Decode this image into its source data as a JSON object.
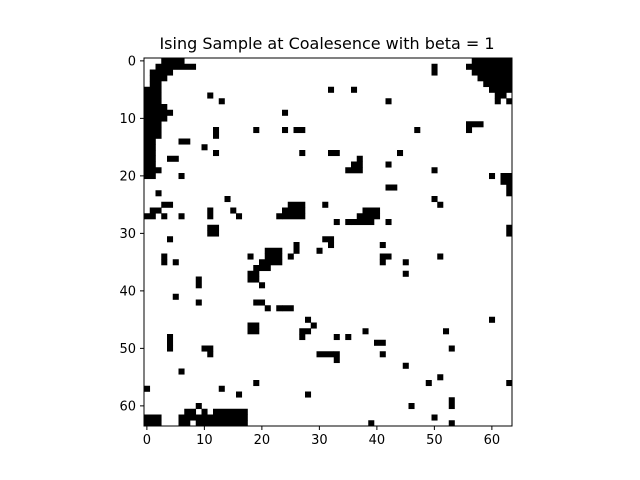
{
  "chart_data": {
    "type": "heatmap",
    "title": "Ising Sample at Coalesence with beta = 1",
    "xlabel": "",
    "ylabel": "",
    "grid_size": 64,
    "xlim": [
      -0.5,
      63.5
    ],
    "ylim": [
      63.5,
      -0.5
    ],
    "colormap": {
      "-1": "#000000",
      "1": "#ffffff"
    },
    "x_ticks": [
      0,
      10,
      20,
      30,
      40,
      50,
      60
    ],
    "y_ticks": [
      0,
      10,
      20,
      30,
      40,
      50,
      60
    ],
    "black_rects": [
      [
        3,
        0,
        4,
        1
      ],
      [
        2,
        1,
        7,
        1
      ],
      [
        1,
        2,
        4,
        1
      ],
      [
        1,
        3,
        3,
        1
      ],
      [
        1,
        4,
        2,
        1
      ],
      [
        0,
        5,
        3,
        1
      ],
      [
        0,
        6,
        3,
        1
      ],
      [
        0,
        7,
        3,
        1
      ],
      [
        0,
        8,
        4,
        1
      ],
      [
        0,
        9,
        5,
        1
      ],
      [
        0,
        10,
        4,
        1
      ],
      [
        0,
        11,
        3,
        1
      ],
      [
        0,
        12,
        3,
        1
      ],
      [
        0,
        13,
        3,
        1
      ],
      [
        0,
        14,
        2,
        1
      ],
      [
        0,
        15,
        2,
        1
      ],
      [
        0,
        16,
        2,
        1
      ],
      [
        0,
        17,
        2,
        1
      ],
      [
        0,
        18,
        2,
        1
      ],
      [
        0,
        19,
        3,
        1
      ],
      [
        0,
        20,
        2,
        1
      ],
      [
        57,
        0,
        7,
        1
      ],
      [
        56,
        1,
        8,
        1
      ],
      [
        57,
        2,
        7,
        1
      ],
      [
        58,
        3,
        6,
        1
      ],
      [
        59,
        4,
        5,
        1
      ],
      [
        60,
        5,
        3,
        1
      ],
      [
        61,
        6,
        2,
        1
      ],
      [
        61,
        7,
        1,
        1
      ],
      [
        50,
        1,
        1,
        2
      ],
      [
        63,
        5,
        1,
        1
      ],
      [
        63,
        7,
        1,
        1
      ],
      [
        11,
        6,
        1,
        1
      ],
      [
        13,
        7,
        1,
        1
      ],
      [
        19,
        12,
        1,
        1
      ],
      [
        24,
        12,
        1,
        1
      ],
      [
        26,
        12,
        2,
        1
      ],
      [
        12,
        12,
        1,
        1
      ],
      [
        12,
        13,
        1,
        1
      ],
      [
        24,
        9,
        1,
        1
      ],
      [
        32,
        5,
        1,
        1
      ],
      [
        36,
        5,
        1,
        1
      ],
      [
        42,
        7,
        1,
        1
      ],
      [
        47,
        12,
        1,
        1
      ],
      [
        56,
        11,
        3,
        1
      ],
      [
        56,
        12,
        1,
        1
      ],
      [
        6,
        14,
        2,
        1
      ],
      [
        10,
        15,
        1,
        1
      ],
      [
        12,
        16,
        1,
        1
      ],
      [
        4,
        17,
        2,
        1
      ],
      [
        6,
        20,
        1,
        1
      ],
      [
        27,
        16,
        1,
        1
      ],
      [
        32,
        16,
        2,
        1
      ],
      [
        44,
        16,
        1,
        1
      ],
      [
        37,
        17,
        1,
        1
      ],
      [
        36,
        18,
        2,
        1
      ],
      [
        35,
        19,
        3,
        1
      ],
      [
        42,
        18,
        1,
        1
      ],
      [
        50,
        19,
        1,
        1
      ],
      [
        60,
        20,
        1,
        1
      ],
      [
        62,
        20,
        2,
        1
      ],
      [
        62,
        21,
        2,
        1
      ],
      [
        63,
        22,
        1,
        2
      ],
      [
        42,
        22,
        2,
        1
      ],
      [
        50,
        24,
        1,
        1
      ],
      [
        51,
        25,
        1,
        1
      ],
      [
        2,
        23,
        1,
        1
      ],
      [
        14,
        24,
        1,
        1
      ],
      [
        3,
        25,
        2,
        1
      ],
      [
        1,
        26,
        2,
        1
      ],
      [
        0,
        27,
        2,
        1
      ],
      [
        3,
        27,
        1,
        1
      ],
      [
        6,
        27,
        1,
        1
      ],
      [
        11,
        26,
        1,
        2
      ],
      [
        15,
        26,
        1,
        1
      ],
      [
        16,
        27,
        1,
        1
      ],
      [
        25,
        25,
        3,
        1
      ],
      [
        24,
        26,
        4,
        1
      ],
      [
        24,
        27,
        4,
        1
      ],
      [
        23,
        27,
        1,
        1
      ],
      [
        31,
        25,
        1,
        1
      ],
      [
        38,
        26,
        3,
        1
      ],
      [
        37,
        27,
        4,
        1
      ],
      [
        36,
        28,
        4,
        1
      ],
      [
        35,
        28,
        1,
        1
      ],
      [
        42,
        28,
        1,
        1
      ],
      [
        33,
        28,
        1,
        1
      ],
      [
        11,
        29,
        2,
        1
      ],
      [
        11,
        30,
        2,
        1
      ],
      [
        63,
        29,
        1,
        2
      ],
      [
        4,
        31,
        1,
        1
      ],
      [
        31,
        31,
        2,
        1
      ],
      [
        32,
        32,
        1,
        1
      ],
      [
        26,
        32,
        1,
        1
      ],
      [
        30,
        33,
        1,
        1
      ],
      [
        25,
        34,
        1,
        1
      ],
      [
        26,
        33,
        1,
        1
      ],
      [
        21,
        33,
        3,
        1
      ],
      [
        21,
        34,
        3,
        1
      ],
      [
        18,
        34,
        1,
        1
      ],
      [
        20,
        35,
        4,
        1
      ],
      [
        19,
        36,
        3,
        1
      ],
      [
        18,
        37,
        2,
        1
      ],
      [
        18,
        38,
        2,
        1
      ],
      [
        5,
        35,
        1,
        1
      ],
      [
        3,
        34,
        1,
        1
      ],
      [
        3,
        35,
        1,
        1
      ],
      [
        9,
        38,
        1,
        2
      ],
      [
        5,
        41,
        1,
        1
      ],
      [
        9,
        42,
        1,
        1
      ],
      [
        19,
        42,
        2,
        1
      ],
      [
        21,
        43,
        1,
        1
      ],
      [
        23,
        43,
        1,
        1
      ],
      [
        24,
        43,
        2,
        1
      ],
      [
        20,
        39,
        1,
        1
      ],
      [
        41,
        32,
        1,
        1
      ],
      [
        41,
        34,
        2,
        1
      ],
      [
        41,
        35,
        1,
        1
      ],
      [
        45,
        35,
        1,
        1
      ],
      [
        45,
        37,
        1,
        1
      ],
      [
        51,
        34,
        1,
        1
      ],
      [
        28,
        45,
        1,
        1
      ],
      [
        29,
        46,
        1,
        1
      ],
      [
        18,
        46,
        2,
        1
      ],
      [
        18,
        47,
        2,
        1
      ],
      [
        27,
        47,
        2,
        1
      ],
      [
        27,
        48,
        1,
        1
      ],
      [
        35,
        48,
        1,
        1
      ],
      [
        33,
        48,
        1,
        1
      ],
      [
        38,
        47,
        1,
        1
      ],
      [
        40,
        49,
        2,
        1
      ],
      [
        52,
        47,
        1,
        1
      ],
      [
        60,
        45,
        1,
        1
      ],
      [
        4,
        48,
        1,
        2
      ],
      [
        4,
        50,
        1,
        1
      ],
      [
        10,
        50,
        2,
        1
      ],
      [
        11,
        51,
        1,
        1
      ],
      [
        30,
        51,
        3,
        1
      ],
      [
        33,
        51,
        1,
        2
      ],
      [
        41,
        51,
        1,
        1
      ],
      [
        53,
        50,
        1,
        1
      ],
      [
        45,
        53,
        1,
        1
      ],
      [
        6,
        54,
        1,
        1
      ],
      [
        51,
        55,
        1,
        1
      ],
      [
        49,
        56,
        1,
        1
      ],
      [
        63,
        56,
        1,
        1
      ],
      [
        0,
        57,
        1,
        1
      ],
      [
        13,
        57,
        1,
        1
      ],
      [
        19,
        56,
        1,
        1
      ],
      [
        16,
        58,
        1,
        1
      ],
      [
        28,
        58,
        1,
        1
      ],
      [
        46,
        60,
        1,
        1
      ],
      [
        53,
        59,
        1,
        2
      ],
      [
        0,
        62,
        3,
        1
      ],
      [
        0,
        63,
        3,
        1
      ],
      [
        7,
        61,
        2,
        1
      ],
      [
        6,
        62,
        3,
        1
      ],
      [
        6,
        63,
        2,
        1
      ],
      [
        9,
        60,
        1,
        1
      ],
      [
        10,
        61,
        1,
        1
      ],
      [
        11,
        62,
        1,
        1
      ],
      [
        12,
        61,
        6,
        1
      ],
      [
        9,
        62,
        9,
        1
      ],
      [
        9,
        63,
        9,
        1
      ],
      [
        39,
        63,
        1,
        1
      ],
      [
        50,
        62,
        1,
        1
      ],
      [
        53,
        63,
        1,
        1
      ]
    ]
  }
}
